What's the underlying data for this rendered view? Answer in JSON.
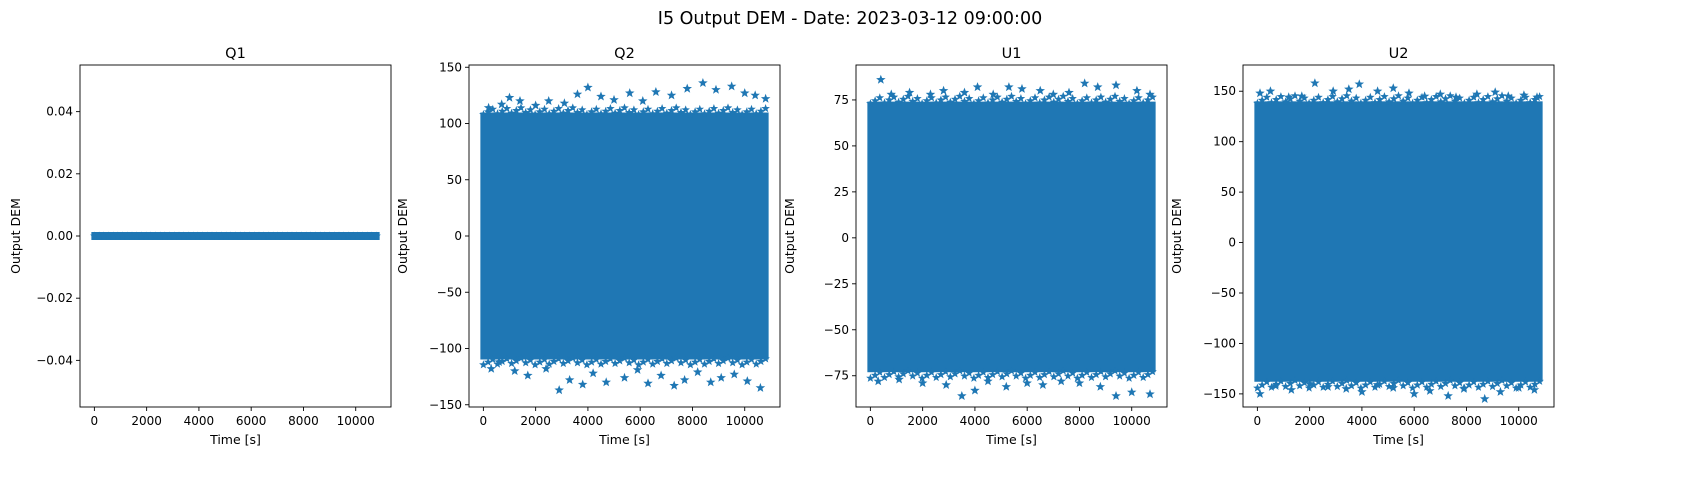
{
  "figure": {
    "suptitle": "I5 Output DEM - Date: 2023-03-12 09:00:00",
    "marker_color": "#1f77b4",
    "marker": "star"
  },
  "chart_data": [
    {
      "type": "scatter",
      "title": "Q1",
      "xlabel": "Time [s]",
      "ylabel": "Output DEM",
      "xlim": [
        -550,
        11350
      ],
      "ylim": [
        -0.055,
        0.055
      ],
      "xticks": [
        0,
        2000,
        4000,
        6000,
        8000,
        10000
      ],
      "xtick_labels": [
        "0",
        "2000",
        "4000",
        "6000",
        "8000",
        "10000"
      ],
      "yticks": [
        -0.04,
        -0.02,
        0.0,
        0.02,
        0.04
      ],
      "ytick_labels": [
        "−0.04",
        "−0.02",
        "0.00",
        "0.02",
        "0.04"
      ],
      "x_range": [
        0,
        10800
      ],
      "band": [
        0,
        0
      ],
      "outliers": []
    },
    {
      "type": "scatter",
      "title": "Q2",
      "xlabel": "Time [s]",
      "ylabel": "Output DEM",
      "xlim": [
        -550,
        11350
      ],
      "ylim": [
        -152,
        152
      ],
      "xticks": [
        0,
        2000,
        4000,
        6000,
        8000,
        10000
      ],
      "xtick_labels": [
        "0",
        "2000",
        "4000",
        "6000",
        "8000",
        "10000"
      ],
      "yticks": [
        -150,
        -100,
        -50,
        0,
        50,
        100,
        150
      ],
      "ytick_labels": [
        "−150",
        "−100",
        "−50",
        "0",
        "50",
        "100",
        "150"
      ],
      "x_range": [
        0,
        10800
      ],
      "band": [
        -108,
        108
      ],
      "outliers": [
        [
          300,
          -118
        ],
        [
          600,
          -112
        ],
        [
          1200,
          -120
        ],
        [
          1700,
          -124
        ],
        [
          2400,
          -118
        ],
        [
          2900,
          -137
        ],
        [
          3300,
          -128
        ],
        [
          3800,
          -132
        ],
        [
          4200,
          -122
        ],
        [
          4700,
          -130
        ],
        [
          5400,
          -126
        ],
        [
          5900,
          -119
        ],
        [
          6300,
          -131
        ],
        [
          6800,
          -124
        ],
        [
          7300,
          -133
        ],
        [
          7700,
          -128
        ],
        [
          8200,
          -121
        ],
        [
          8700,
          -130
        ],
        [
          9100,
          -126
        ],
        [
          9600,
          -123
        ],
        [
          10100,
          -129
        ],
        [
          10600,
          -135
        ],
        [
          200,
          114
        ],
        [
          700,
          117
        ],
        [
          1000,
          123
        ],
        [
          1400,
          120
        ],
        [
          2000,
          116
        ],
        [
          2500,
          120
        ],
        [
          3100,
          118
        ],
        [
          3600,
          126
        ],
        [
          4000,
          132
        ],
        [
          4500,
          124
        ],
        [
          5000,
          121
        ],
        [
          5600,
          127
        ],
        [
          6100,
          120
        ],
        [
          6600,
          128
        ],
        [
          7200,
          125
        ],
        [
          7800,
          131
        ],
        [
          8400,
          136
        ],
        [
          8900,
          130
        ],
        [
          9500,
          133
        ],
        [
          10000,
          127
        ],
        [
          10400,
          125
        ],
        [
          10800,
          122
        ]
      ]
    },
    {
      "type": "scatter",
      "title": "U1",
      "xlabel": "Time [s]",
      "ylabel": "Output DEM",
      "xlim": [
        -550,
        11350
      ],
      "ylim": [
        -92,
        94
      ],
      "xticks": [
        0,
        2000,
        4000,
        6000,
        8000,
        10000
      ],
      "xtick_labels": [
        "0",
        "2000",
        "4000",
        "6000",
        "8000",
        "10000"
      ],
      "yticks": [
        -75,
        -50,
        -25,
        0,
        25,
        50,
        75
      ],
      "ytick_labels": [
        "−75",
        "−50",
        "−25",
        "0",
        "25",
        "50",
        "75"
      ],
      "x_range": [
        0,
        10800
      ],
      "band": [
        -72,
        73
      ],
      "outliers": [
        [
          400,
          86
        ],
        [
          800,
          78
        ],
        [
          1500,
          79
        ],
        [
          2300,
          78
        ],
        [
          2800,
          80
        ],
        [
          3600,
          79
        ],
        [
          4100,
          82
        ],
        [
          4700,
          78
        ],
        [
          5300,
          82
        ],
        [
          5800,
          81
        ],
        [
          6500,
          80
        ],
        [
          7000,
          78
        ],
        [
          7600,
          79
        ],
        [
          8200,
          84
        ],
        [
          8700,
          82
        ],
        [
          9400,
          83
        ],
        [
          10200,
          80
        ],
        [
          10700,
          78
        ],
        [
          300,
          -78
        ],
        [
          1100,
          -77
        ],
        [
          2000,
          -79
        ],
        [
          2900,
          -80
        ],
        [
          3500,
          -86
        ],
        [
          4000,
          -83
        ],
        [
          4500,
          -78
        ],
        [
          5200,
          -81
        ],
        [
          6000,
          -79
        ],
        [
          6600,
          -80
        ],
        [
          7300,
          -78
        ],
        [
          8000,
          -79
        ],
        [
          8800,
          -81
        ],
        [
          9400,
          -86
        ],
        [
          10000,
          -84
        ],
        [
          10700,
          -85
        ]
      ]
    },
    {
      "type": "scatter",
      "title": "U2",
      "xlabel": "Time [s]",
      "ylabel": "Output DEM",
      "xlim": [
        -550,
        11350
      ],
      "ylim": [
        -163,
        176
      ],
      "xticks": [
        0,
        2000,
        4000,
        6000,
        8000,
        10000
      ],
      "xtick_labels": [
        "0",
        "2000",
        "4000",
        "6000",
        "8000",
        "10000"
      ],
      "yticks": [
        -150,
        -100,
        -50,
        0,
        50,
        100,
        150
      ],
      "ytick_labels": [
        "−150",
        "−100",
        "−50",
        "0",
        "50",
        "100",
        "150"
      ],
      "x_range": [
        0,
        10800
      ],
      "band": [
        -136,
        138
      ],
      "outliers": [
        [
          100,
          -150
        ],
        [
          700,
          -142
        ],
        [
          1300,
          -146
        ],
        [
          2000,
          -140
        ],
        [
          2700,
          -143
        ],
        [
          3400,
          -145
        ],
        [
          4000,
          -148
        ],
        [
          4600,
          -141
        ],
        [
          5200,
          -144
        ],
        [
          6000,
          -150
        ],
        [
          6600,
          -147
        ],
        [
          7300,
          -152
        ],
        [
          7900,
          -145
        ],
        [
          8700,
          -155
        ],
        [
          9300,
          -148
        ],
        [
          10000,
          -144
        ],
        [
          10600,
          -146
        ],
        [
          100,
          148
        ],
        [
          500,
          150
        ],
        [
          1200,
          144
        ],
        [
          1700,
          145
        ],
        [
          2200,
          158
        ],
        [
          2900,
          150
        ],
        [
          3500,
          152
        ],
        [
          3900,
          157
        ],
        [
          4600,
          150
        ],
        [
          5200,
          153
        ],
        [
          5800,
          148
        ],
        [
          6400,
          145
        ],
        [
          7000,
          147
        ],
        [
          7600,
          144
        ],
        [
          8400,
          147
        ],
        [
          9100,
          149
        ],
        [
          9600,
          145
        ],
        [
          10200,
          146
        ],
        [
          10700,
          144
        ]
      ]
    }
  ]
}
